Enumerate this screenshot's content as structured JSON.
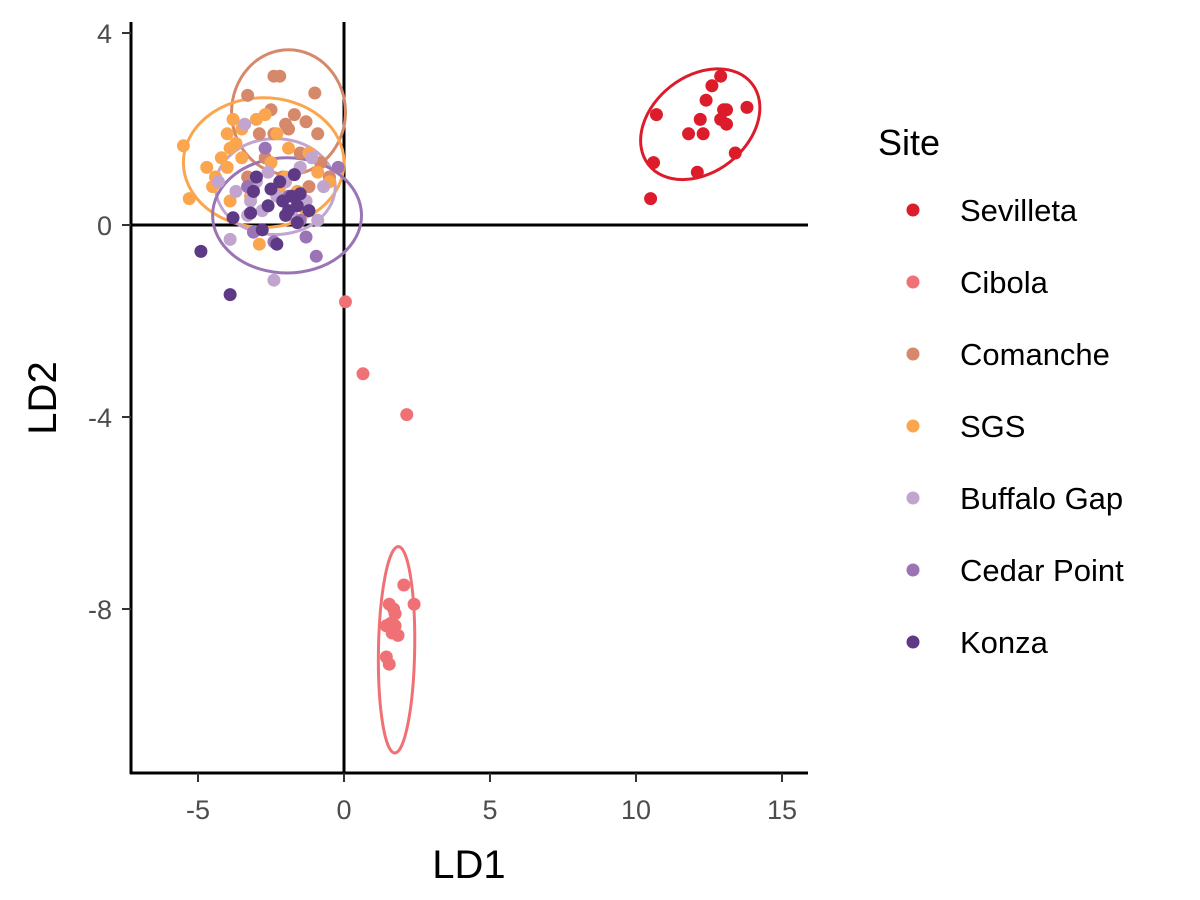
{
  "chart_data": {
    "type": "scatter",
    "xlabel": "LD1",
    "ylabel": "LD2",
    "xlim": [
      -7.1,
      15.6
    ],
    "ylim": [
      -11.5,
      4.2
    ],
    "x_ticks": [
      -5,
      0,
      5,
      10,
      15
    ],
    "y_ticks": [
      4,
      0,
      -4,
      -8
    ],
    "x_tick_labels": [
      "-5",
      "0",
      "5",
      "10",
      "15"
    ],
    "y_tick_labels": [
      "4",
      "0",
      "-4",
      "-8"
    ],
    "reference_lines": {
      "x": 0,
      "y": 0
    },
    "grid": false,
    "legend": {
      "title": "Site",
      "position": "right"
    },
    "series": [
      {
        "name": "Sevilleta",
        "color": "#dc1c2a",
        "ellipse": {
          "cx": 12.2,
          "cy": 2.1,
          "rx": 2.25,
          "ry": 1.0,
          "angle": 38
        },
        "points": [
          [
            10.5,
            0.55
          ],
          [
            10.6,
            1.3
          ],
          [
            10.7,
            2.3
          ],
          [
            11.8,
            1.9
          ],
          [
            12.1,
            1.1
          ],
          [
            12.2,
            2.2
          ],
          [
            12.3,
            1.9
          ],
          [
            12.4,
            2.6
          ],
          [
            12.6,
            2.9
          ],
          [
            12.9,
            2.2
          ],
          [
            12.9,
            3.1
          ],
          [
            13.0,
            2.4
          ],
          [
            13.1,
            2.4
          ],
          [
            13.1,
            2.1
          ],
          [
            13.4,
            1.5
          ],
          [
            13.8,
            2.45
          ]
        ]
      },
      {
        "name": "Cibola",
        "color": "#f07175",
        "ellipse": {
          "cx": 1.8,
          "cy": -8.85,
          "rx": 0.62,
          "ry": 2.15,
          "angle": -1
        },
        "points": [
          [
            0.05,
            -1.6
          ],
          [
            0.65,
            -3.1
          ],
          [
            2.15,
            -3.95
          ],
          [
            2.05,
            -7.5
          ],
          [
            2.4,
            -7.9
          ],
          [
            1.55,
            -7.9
          ],
          [
            1.7,
            -8.0
          ],
          [
            1.75,
            -8.1
          ],
          [
            1.6,
            -8.3
          ],
          [
            1.75,
            -8.35
          ],
          [
            1.45,
            -8.35
          ],
          [
            1.65,
            -8.5
          ],
          [
            1.85,
            -8.55
          ],
          [
            1.45,
            -9.0
          ],
          [
            1.55,
            -9.15
          ]
        ]
      },
      {
        "name": "Comanche",
        "color": "#d6896a",
        "ellipse": {
          "cx": -1.9,
          "cy": 2.35,
          "rx": 1.95,
          "ry": 1.3,
          "angle": 0
        },
        "points": [
          [
            -3.3,
            2.7
          ],
          [
            -2.4,
            3.1
          ],
          [
            -2.2,
            3.1
          ],
          [
            -1.0,
            2.75
          ],
          [
            -2.5,
            2.4
          ],
          [
            -2.0,
            2.1
          ],
          [
            -1.7,
            2.3
          ],
          [
            -1.3,
            2.15
          ],
          [
            -2.9,
            1.9
          ],
          [
            -2.4,
            1.9
          ],
          [
            -1.9,
            2.0
          ],
          [
            -0.9,
            1.9
          ],
          [
            -2.7,
            1.4
          ],
          [
            -1.5,
            1.5
          ],
          [
            -0.8,
            1.3
          ],
          [
            -3.3,
            1.0
          ],
          [
            -2.1,
            1.0
          ],
          [
            -1.2,
            0.8
          ],
          [
            -0.5,
            1.0
          ]
        ]
      },
      {
        "name": "SGS",
        "color": "#fba64f",
        "ellipse": {
          "cx": -2.75,
          "cy": 1.3,
          "rx": 2.75,
          "ry": 1.35,
          "angle": 0
        },
        "points": [
          [
            -5.5,
            1.65
          ],
          [
            -5.3,
            0.55
          ],
          [
            -4.4,
            1.0
          ],
          [
            -4.2,
            1.4
          ],
          [
            -4.0,
            1.2
          ],
          [
            -3.9,
            1.6
          ],
          [
            -4.0,
            1.9
          ],
          [
            -3.7,
            1.7
          ],
          [
            -3.5,
            2.0
          ],
          [
            -3.0,
            2.2
          ],
          [
            -2.7,
            2.3
          ],
          [
            -2.3,
            1.9
          ],
          [
            -1.9,
            1.6
          ],
          [
            -1.5,
            1.2
          ],
          [
            -1.2,
            1.5
          ],
          [
            -0.9,
            1.1
          ],
          [
            -0.5,
            0.9
          ],
          [
            -2.5,
            1.3
          ],
          [
            -2.2,
            0.8
          ],
          [
            -3.2,
            0.6
          ],
          [
            -3.9,
            0.5
          ],
          [
            -4.7,
            1.2
          ],
          [
            -4.5,
            0.8
          ],
          [
            -2.9,
            -0.4
          ],
          [
            -1.6,
            0.7
          ],
          [
            -3.8,
            2.2
          ],
          [
            -2.0,
            1.0
          ],
          [
            -1.3,
            0.3
          ],
          [
            -3.5,
            1.4
          ]
        ]
      },
      {
        "name": "Buffalo Gap",
        "color": "#c2a5cf",
        "ellipse": {
          "cx": -2.35,
          "cy": 0.8,
          "rx": 2.05,
          "ry": 1.0,
          "angle": 0
        },
        "points": [
          [
            -3.4,
            2.1
          ],
          [
            -3.7,
            0.7
          ],
          [
            -3.2,
            0.5
          ],
          [
            -3.3,
            0.2
          ],
          [
            -3.0,
            0.9
          ],
          [
            -2.8,
            0.3
          ],
          [
            -2.6,
            1.1
          ],
          [
            -2.3,
            0.6
          ],
          [
            -2.0,
            0.9
          ],
          [
            -1.8,
            0.2
          ],
          [
            -1.5,
            1.2
          ],
          [
            -1.3,
            0.5
          ],
          [
            -0.9,
            0.1
          ],
          [
            -0.7,
            0.8
          ],
          [
            -3.9,
            -0.3
          ],
          [
            -2.4,
            -1.15
          ],
          [
            -2.7,
            1.6
          ],
          [
            -1.1,
            1.4
          ],
          [
            -4.3,
            0.9
          ]
        ]
      },
      {
        "name": "Cedar Point",
        "color": "#9b74b5",
        "ellipse": {
          "cx": -1.95,
          "cy": 0.2,
          "rx": 2.55,
          "ry": 1.2,
          "angle": 0
        },
        "points": [
          [
            -0.2,
            1.2
          ],
          [
            -0.95,
            -0.65
          ],
          [
            -3.1,
            -0.15
          ],
          [
            -2.4,
            -0.35
          ],
          [
            -1.5,
            0.1
          ],
          [
            -2.7,
            1.6
          ],
          [
            -3.3,
            0.8
          ],
          [
            -1.3,
            -0.25
          ],
          [
            -1.9,
            0.6
          ]
        ]
      },
      {
        "name": "Konza",
        "color": "#5e3a86",
        "ellipse": null,
        "points": [
          [
            -4.9,
            -0.55
          ],
          [
            -3.9,
            -1.45
          ],
          [
            -3.8,
            0.15
          ],
          [
            -3.2,
            0.25
          ],
          [
            -3.1,
            0.7
          ],
          [
            -2.8,
            -0.1
          ],
          [
            -2.6,
            0.4
          ],
          [
            -2.3,
            -0.4
          ],
          [
            -2.0,
            0.2
          ],
          [
            -2.1,
            0.5
          ],
          [
            -1.9,
            0.3
          ],
          [
            -1.8,
            0.6
          ],
          [
            -1.6,
            0.4
          ],
          [
            -1.6,
            0.05
          ],
          [
            -1.5,
            0.65
          ],
          [
            -1.7,
            1.05
          ],
          [
            -2.2,
            0.9
          ],
          [
            -3.0,
            1.0
          ],
          [
            -2.5,
            0.75
          ],
          [
            -1.2,
            0.3
          ]
        ]
      }
    ]
  }
}
